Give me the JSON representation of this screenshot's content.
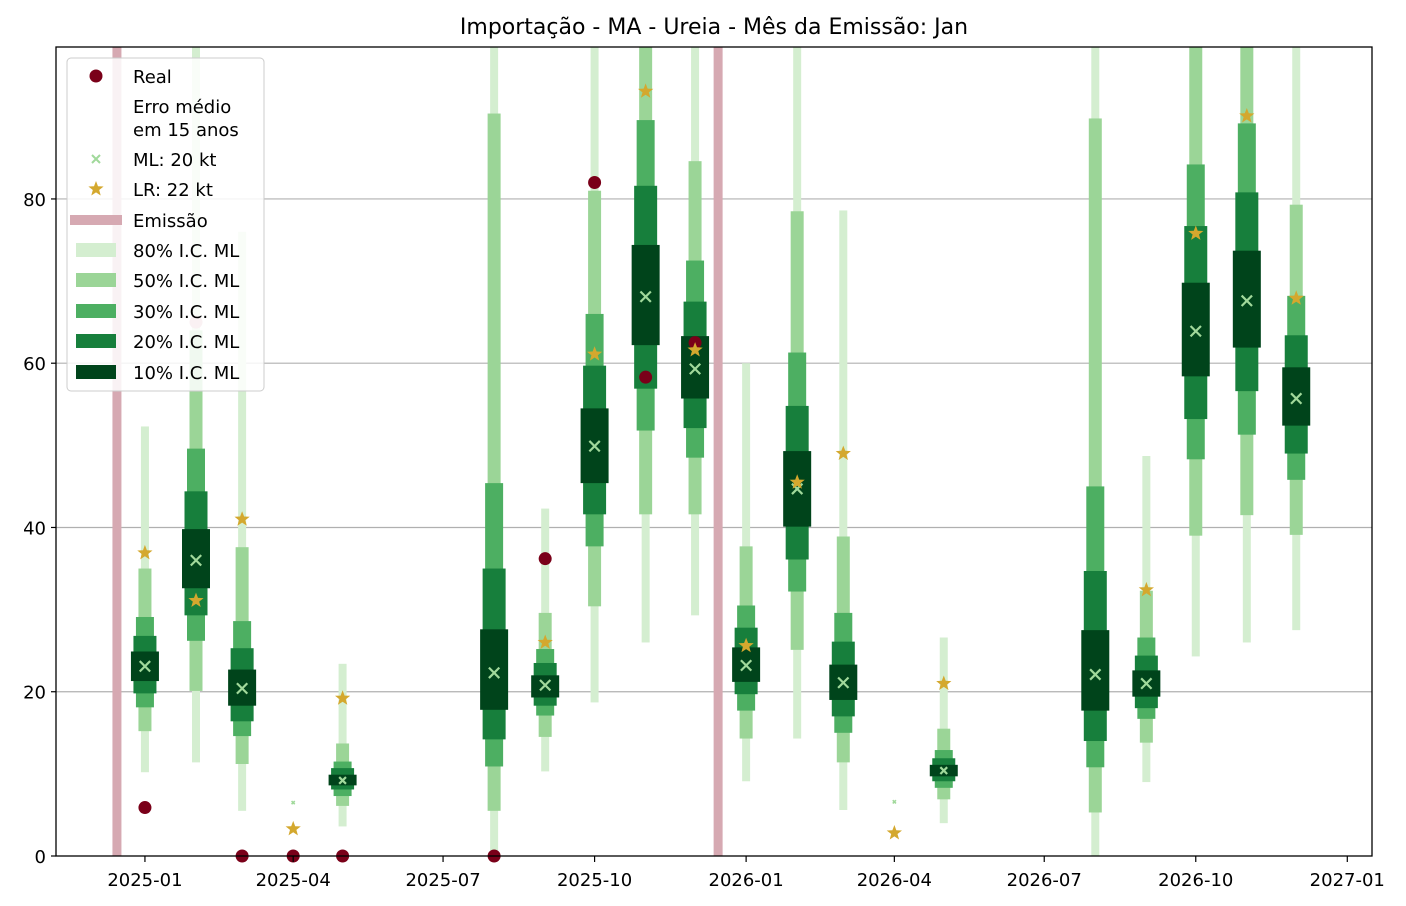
{
  "chart_data": {
    "type": "interval-forecast",
    "title": "Importação - MA - Ureia - Mês da Emissão: Jan",
    "xlabel": "",
    "ylabel": "",
    "x_ticks": [
      "2025-01",
      "2025-04",
      "2025-07",
      "2025-10",
      "2026-01",
      "2026-04",
      "2026-07",
      "2026-10",
      "2027-01"
    ],
    "y_ticks": [
      0,
      20,
      40,
      60,
      80
    ],
    "xlim": [
      "2024-11-08",
      "2027-01-16"
    ],
    "ylim": [
      0,
      98.5
    ],
    "grid": "y",
    "legend_position": "upper-left",
    "legend": [
      {
        "key": "real",
        "label": "Real"
      },
      {
        "key": "erro",
        "label": "Erro médio\nem 15 anos"
      },
      {
        "key": "ml",
        "label": "ML: 20 kt"
      },
      {
        "key": "lr",
        "label": "LR: 22 kt"
      },
      {
        "key": "emissao",
        "label": "Emissão"
      },
      {
        "key": "ci80",
        "label": "80% I.C. ML"
      },
      {
        "key": "ci50",
        "label": "50% I.C. ML"
      },
      {
        "key": "ci30",
        "label": "30% I.C. ML"
      },
      {
        "key": "ci20",
        "label": "20% I.C. ML"
      },
      {
        "key": "ci10",
        "label": "10% I.C. ML"
      }
    ],
    "colors": {
      "real": "#7a0019",
      "real_faded": "#d9a0ad",
      "ml": "#a1d99b",
      "lr": "#d4a82e",
      "emissao": "#d6a9b2",
      "ci80": "#d4eed0",
      "ci50": "#9bd597",
      "ci30": "#4daf62",
      "ci20": "#177f3c",
      "ci10": "#00441b",
      "grid": "#b0b0b0"
    },
    "emissao_dates": [
      "2024-12-15",
      "2025-12-15"
    ],
    "series": [
      {
        "date": "2025-01-01",
        "ml": 23.1,
        "lr": 36.9,
        "real": 5.9,
        "real_faded": false,
        "ci80": [
          10.2,
          52.3
        ],
        "ci50": [
          15.2,
          35.0
        ],
        "ci30": [
          18.1,
          29.1
        ],
        "ci20": [
          19.8,
          26.8
        ],
        "ci10": [
          21.3,
          24.9
        ]
      },
      {
        "date": "2025-02-01",
        "ml": 36.0,
        "lr": 31.1,
        "real": 65.0,
        "real_faded": true,
        "ci80": [
          11.4,
          98.5
        ],
        "ci50": [
          20.1,
          64.0
        ],
        "ci30": [
          26.2,
          49.6
        ],
        "ci20": [
          29.3,
          44.4
        ],
        "ci10": [
          32.6,
          39.8
        ]
      },
      {
        "date": "2025-03-01",
        "ml": 20.4,
        "lr": 41.0,
        "real": 0.0,
        "real_faded": false,
        "ci80": [
          5.5,
          76.0
        ],
        "ci50": [
          11.2,
          37.6
        ],
        "ci30": [
          14.6,
          28.6
        ],
        "ci20": [
          16.4,
          25.3
        ],
        "ci10": [
          18.3,
          22.7
        ]
      },
      {
        "date": "2025-04-01",
        "ml": 6.5,
        "lr": 3.3,
        "real": 0.0,
        "real_faded": false,
        "ci80": null,
        "ci50": null,
        "ci30": null,
        "ci20": null,
        "ci10": null
      },
      {
        "date": "2025-05-01",
        "ml": 9.2,
        "lr": 19.2,
        "real": 0.0,
        "real_faded": false,
        "ci80": [
          3.6,
          23.4
        ],
        "ci50": [
          6.1,
          13.7
        ],
        "ci30": [
          7.3,
          11.5
        ],
        "ci20": [
          8.1,
          10.7
        ],
        "ci10": [
          8.6,
          9.9
        ]
      },
      {
        "date": "2025-08-01",
        "ml": 22.3,
        "lr": null,
        "real": 0.0,
        "real_faded": false,
        "ci80": [
          0,
          98.5
        ],
        "ci50": [
          5.5,
          90.4
        ],
        "ci30": [
          10.9,
          45.4
        ],
        "ci20": [
          14.2,
          35.0
        ],
        "ci10": [
          17.8,
          27.6
        ]
      },
      {
        "date": "2025-09-01",
        "ml": 20.8,
        "lr": 26.0,
        "real": 36.2,
        "real_faded": false,
        "ci80": [
          10.3,
          42.3
        ],
        "ci50": [
          14.5,
          29.6
        ],
        "ci30": [
          17.1,
          25.2
        ],
        "ci20": [
          18.3,
          23.5
        ],
        "ci10": [
          19.3,
          22.0
        ]
      },
      {
        "date": "2025-10-01",
        "ml": 49.9,
        "lr": 61.1,
        "real": 82.0,
        "real_faded": false,
        "ci80": [
          18.7,
          98.5
        ],
        "ci50": [
          30.4,
          81.0
        ],
        "ci30": [
          37.7,
          66.0
        ],
        "ci20": [
          41.6,
          59.7
        ],
        "ci10": [
          45.4,
          54.5
        ]
      },
      {
        "date": "2025-11-01",
        "ml": 68.1,
        "lr": 93.1,
        "real": 58.3,
        "real_faded": false,
        "ci80": [
          26.0,
          98.5
        ],
        "ci50": [
          41.6,
          98.5
        ],
        "ci30": [
          51.8,
          89.6
        ],
        "ci20": [
          56.9,
          81.6
        ],
        "ci10": [
          62.2,
          74.4
        ]
      },
      {
        "date": "2025-12-01",
        "ml": 59.3,
        "lr": 61.6,
        "real": 62.5,
        "real_faded": false,
        "ci80": [
          29.3,
          98.5
        ],
        "ci50": [
          41.6,
          84.6
        ],
        "ci30": [
          48.5,
          72.5
        ],
        "ci20": [
          52.1,
          67.5
        ],
        "ci10": [
          55.7,
          63.3
        ]
      },
      {
        "date": "2026-01-01",
        "ml": 23.2,
        "lr": 25.6,
        "real": null,
        "real_faded": false,
        "ci80": [
          9.1,
          60.0
        ],
        "ci50": [
          14.3,
          37.7
        ],
        "ci30": [
          17.7,
          30.5
        ],
        "ci20": [
          19.7,
          27.8
        ],
        "ci10": [
          21.2,
          25.4
        ]
      },
      {
        "date": "2026-02-01",
        "ml": 44.7,
        "lr": 45.5,
        "real": null,
        "real_faded": false,
        "ci80": [
          14.3,
          98.5
        ],
        "ci50": [
          25.1,
          78.5
        ],
        "ci30": [
          32.2,
          61.3
        ],
        "ci20": [
          36.1,
          54.8
        ],
        "ci10": [
          40.1,
          49.3
        ]
      },
      {
        "date": "2026-03-01",
        "ml": 21.1,
        "lr": 49.0,
        "real": null,
        "real_faded": false,
        "ci80": [
          5.6,
          78.6
        ],
        "ci50": [
          11.4,
          38.9
        ],
        "ci30": [
          15.0,
          29.6
        ],
        "ci20": [
          17.0,
          26.1
        ],
        "ci10": [
          19.0,
          23.3
        ]
      },
      {
        "date": "2026-04-01",
        "ml": 6.6,
        "lr": 2.8,
        "real": null,
        "real_faded": false,
        "ci80": null,
        "ci50": null,
        "ci30": null,
        "ci20": null,
        "ci10": null
      },
      {
        "date": "2026-05-01",
        "ml": 10.4,
        "lr": 21.0,
        "real": null,
        "real_faded": false,
        "ci80": [
          4.0,
          26.6
        ],
        "ci50": [
          6.9,
          15.5
        ],
        "ci30": [
          8.3,
          12.9
        ],
        "ci20": [
          9.1,
          11.9
        ],
        "ci10": [
          9.7,
          11.1
        ]
      },
      {
        "date": "2026-08-01",
        "ml": 22.1,
        "lr": null,
        "real": null,
        "real_faded": false,
        "ci80": [
          0,
          98.5
        ],
        "ci50": [
          5.3,
          89.8
        ],
        "ci30": [
          10.8,
          45.0
        ],
        "ci20": [
          14.0,
          34.7
        ],
        "ci10": [
          17.7,
          27.5
        ]
      },
      {
        "date": "2026-09-01",
        "ml": 21.0,
        "lr": 32.4,
        "real": null,
        "real_faded": false,
        "ci80": [
          9.0,
          48.7
        ],
        "ci50": [
          13.8,
          32.3
        ],
        "ci30": [
          16.7,
          26.6
        ],
        "ci20": [
          18.0,
          24.4
        ],
        "ci10": [
          19.4,
          22.6
        ]
      },
      {
        "date": "2026-10-01",
        "ml": 63.9,
        "lr": 75.8,
        "real": null,
        "real_faded": false,
        "ci80": [
          24.3,
          98.5
        ],
        "ci50": [
          39.0,
          98.5
        ],
        "ci30": [
          48.3,
          84.2
        ],
        "ci20": [
          53.2,
          76.7
        ],
        "ci10": [
          58.4,
          69.8
        ]
      },
      {
        "date": "2026-11-01",
        "ml": 67.6,
        "lr": 90.1,
        "real": null,
        "real_faded": false,
        "ci80": [
          26.0,
          98.5
        ],
        "ci50": [
          41.5,
          98.5
        ],
        "ci30": [
          51.3,
          89.2
        ],
        "ci20": [
          56.6,
          80.8
        ],
        "ci10": [
          61.9,
          73.7
        ]
      },
      {
        "date": "2026-12-01",
        "ml": 55.7,
        "lr": 67.9,
        "real": null,
        "real_faded": false,
        "ci80": [
          27.5,
          98.5
        ],
        "ci50": [
          39.1,
          79.3
        ],
        "ci30": [
          45.8,
          68.2
        ],
        "ci20": [
          49.0,
          63.4
        ],
        "ci10": [
          52.4,
          59.5
        ]
      }
    ]
  }
}
